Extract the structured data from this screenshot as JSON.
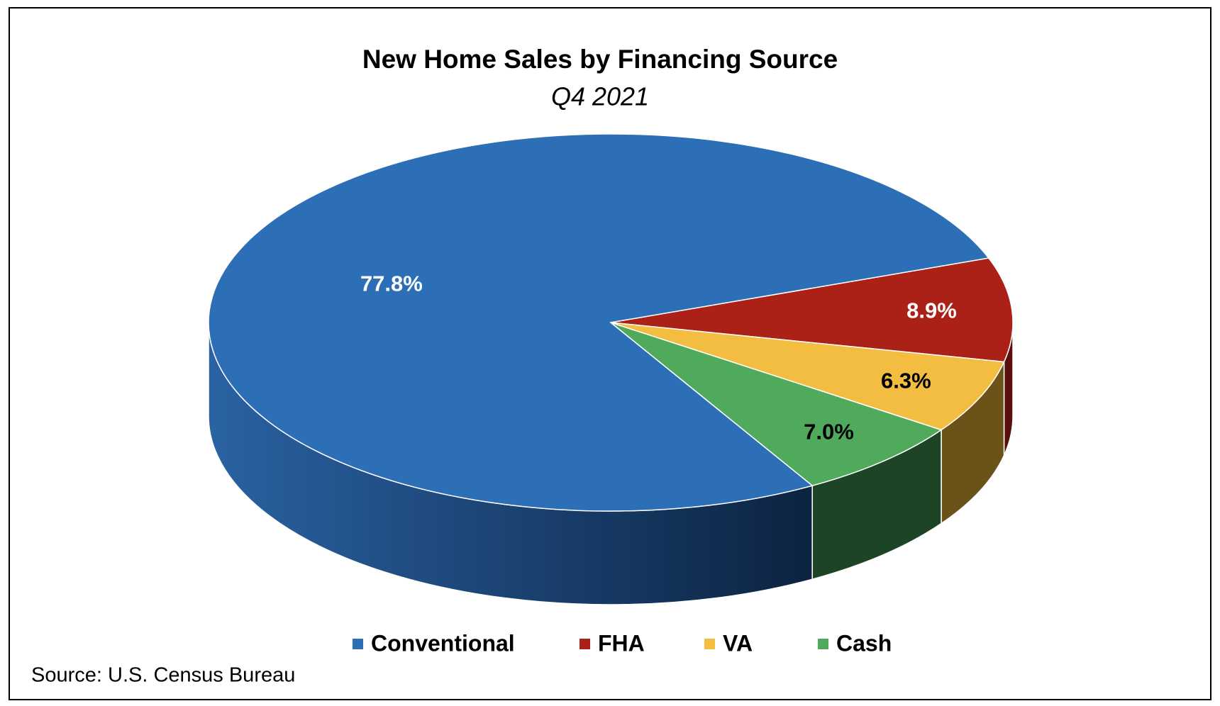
{
  "chart_data": {
    "type": "pie",
    "title": "New Home Sales by Financing Source",
    "subtitle": "Q4 2021",
    "categories": [
      "FHA",
      "VA",
      "Cash",
      "Conventional"
    ],
    "values": [
      8.9,
      6.3,
      7.0,
      77.8
    ],
    "value_labels": [
      "8.9%",
      "6.3%",
      "7.0%",
      "77.8%"
    ],
    "colors": [
      "#ab2118",
      "#f3bd41",
      "#4fab5b",
      "#2d6fb7"
    ],
    "wall_colors": [
      "#5a0f0c",
      "#6b5218",
      "#1d4424",
      "#1f4f8a"
    ],
    "label_colors": [
      "#ffffff",
      "#000000",
      "#000000",
      "#ffffff"
    ],
    "legend_order": [
      3,
      0,
      1,
      2
    ],
    "source": "Source: U.S. Census Bureau"
  }
}
